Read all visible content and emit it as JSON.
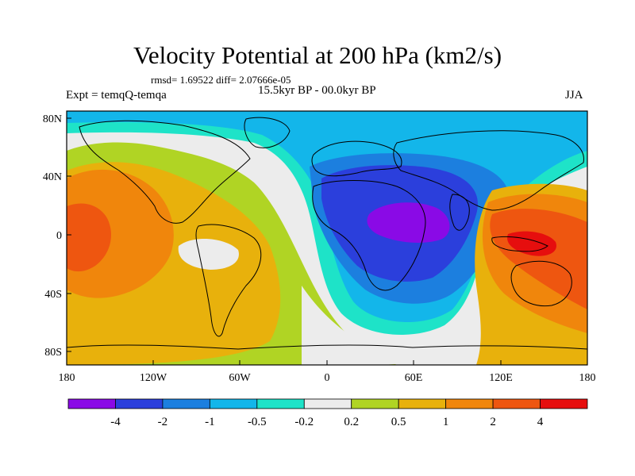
{
  "title": "Velocity Potential at 200 hPa (km2/s)",
  "stats": "rmsd= 1.69522 diff= 2.07666e-05",
  "experiment": "Expt = temqQ-temqa",
  "period": "15.5kyr BP - 00.0kyr BP",
  "season": "JJA",
  "axes": {
    "lat_ticks": [
      "80N",
      "40N",
      "0",
      "40S",
      "80S"
    ],
    "lon_ticks": [
      "180",
      "120W",
      "60W",
      "0",
      "60E",
      "120E",
      "180"
    ]
  },
  "colorbar": {
    "labels": [
      "-4",
      "-2",
      "-1",
      "-0.5",
      "-0.2",
      "0.2",
      "0.5",
      "1",
      "2",
      "4"
    ],
    "colors": [
      "#8a0ae6",
      "#2b3fdc",
      "#1c7fdf",
      "#13b6ea",
      "#1ee3c8",
      "#ececec",
      "#b0d424",
      "#e8b10c",
      "#f0860c",
      "#ee5610",
      "#e60e0e"
    ]
  },
  "palette": {
    "land_outline": "#000000",
    "frame": "#000000"
  }
}
